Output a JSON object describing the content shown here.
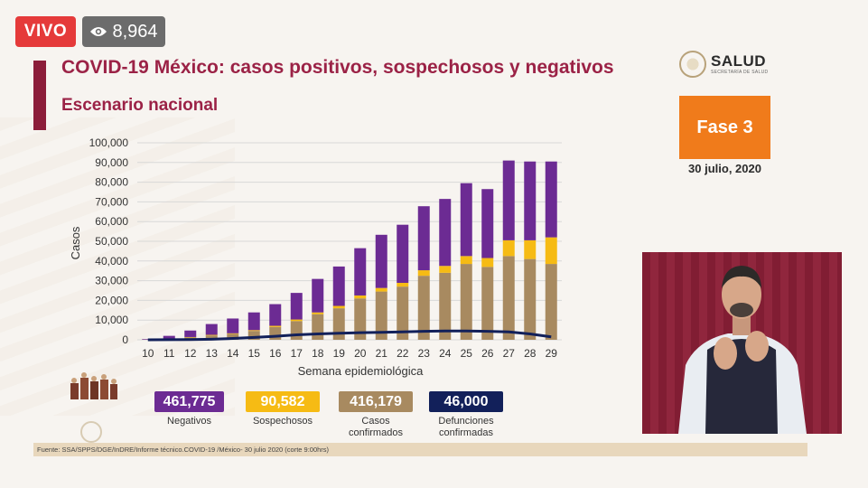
{
  "stream": {
    "live_label": "VIVO",
    "view_count": "8,964",
    "eye_icon": "eye-icon"
  },
  "slide": {
    "title": "COVID-19 México: casos positivos, sospechosos y negativos",
    "subtitle": "Escenario nacional",
    "logo_text": "SALUD",
    "logo_subtext": "SECRETARÍA DE SALUD",
    "phase": "Fase 3",
    "date": "30 julio, 2020",
    "footer": "Fuente: SSA/SPPS/DGE/InDRE/Informe técnico.COVID-19 /México- 30 julio 2020 (corte 9:00hrs)"
  },
  "summary": [
    {
      "value": "461,775",
      "label": "Negativos",
      "color": "#6c2b93"
    },
    {
      "value": "90,582",
      "label": "Sospechosos",
      "color": "#f6bb14"
    },
    {
      "value": "416,179",
      "label": "Casos confirmados",
      "color": "#a88a60"
    },
    {
      "value": "46,000",
      "label": "Defunciones confirmadas",
      "color": "#12205a"
    }
  ],
  "chart_data": {
    "type": "bar",
    "stacked": true,
    "xlabel": "Semana epidemiológica",
    "ylabel": "Casos",
    "ylim": [
      0,
      100000
    ],
    "yticks": [
      "0",
      "10,000",
      "20,000",
      "30,000",
      "40,000",
      "50,000",
      "60,000",
      "70,000",
      "80,000",
      "90,000",
      "100,000"
    ],
    "grid": true,
    "categories": [
      "10",
      "11",
      "12",
      "13",
      "14",
      "15",
      "16",
      "17",
      "18",
      "19",
      "20",
      "21",
      "22",
      "23",
      "24",
      "25",
      "26",
      "27",
      "28",
      "29"
    ],
    "series": [
      {
        "kind": "bar",
        "color": "#a88a60",
        "values": [
          50,
          300,
          1200,
          2200,
          3000,
          4500,
          6500,
          9500,
          13000,
          16000,
          21000,
          24500,
          27000,
          32500,
          34000,
          38500,
          37000,
          42500,
          41000,
          38500
        ]
      },
      {
        "kind": "bar",
        "color": "#f6bb14",
        "values": [
          50,
          100,
          200,
          300,
          300,
          400,
          600,
          800,
          900,
          1200,
          1500,
          1800,
          1900,
          2800,
          3500,
          4000,
          4500,
          8000,
          9500,
          13500
        ]
      },
      {
        "kind": "bar",
        "color": "#6c2b93",
        "values": [
          300,
          1600,
          3300,
          5500,
          7500,
          9000,
          11000,
          13500,
          17000,
          20000,
          24000,
          27000,
          29500,
          32500,
          34000,
          37000,
          35000,
          40500,
          40000,
          38500
        ]
      },
      {
        "kind": "line",
        "color": "#12205a",
        "values": [
          0,
          30,
          100,
          300,
          700,
          1200,
          1800,
          2500,
          3000,
          3300,
          3600,
          3800,
          4000,
          4300,
          4500,
          4500,
          4300,
          4000,
          3000,
          1500
        ]
      }
    ]
  }
}
